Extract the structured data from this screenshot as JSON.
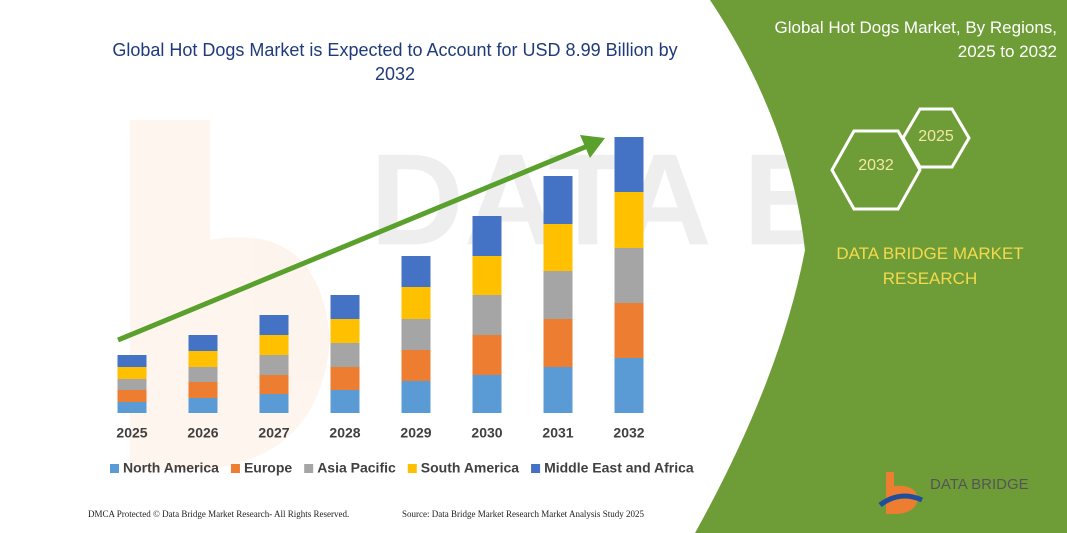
{
  "chart_data": {
    "type": "bar",
    "stacked": true,
    "title": "Global Hot Dogs Market is Expected to Account for USD 8.99 Billion by 2032",
    "categories": [
      "2025",
      "2026",
      "2027",
      "2028",
      "2029",
      "2030",
      "2031",
      "2032"
    ],
    "series": [
      {
        "name": "North America",
        "color": "#5b9bd5",
        "values": [
          11,
          15,
          19,
          23,
          32,
          38,
          46,
          55
        ]
      },
      {
        "name": "Europe",
        "color": "#ed7d31",
        "values": [
          12,
          16,
          19,
          23,
          31,
          40,
          48,
          55
        ]
      },
      {
        "name": "Asia Pacific",
        "color": "#a5a5a5",
        "values": [
          11,
          15,
          20,
          24,
          31,
          40,
          48,
          55
        ]
      },
      {
        "name": "South America",
        "color": "#ffc000",
        "values": [
          12,
          16,
          20,
          24,
          32,
          39,
          47,
          56
        ]
      },
      {
        "name": "Middle East and Africa",
        "color": "#4472c4",
        "values": [
          12,
          16,
          20,
          24,
          31,
          40,
          48,
          55
        ]
      }
    ]
  },
  "panel": {
    "title": "Global Hot Dogs Market, By Regions, 2025 to 2032",
    "hex_labels": [
      "2032",
      "2025"
    ],
    "brand": "DATA BRIDGE MARKET RESEARCH"
  },
  "footer": {
    "dmca": "DMCA Protected © Data Bridge Market Research- All Rights Reserved.",
    "source": "Source: Data Bridge Market Research Market Analysis Study 2025"
  },
  "logo": {
    "text": "DATA BRIDGE"
  }
}
